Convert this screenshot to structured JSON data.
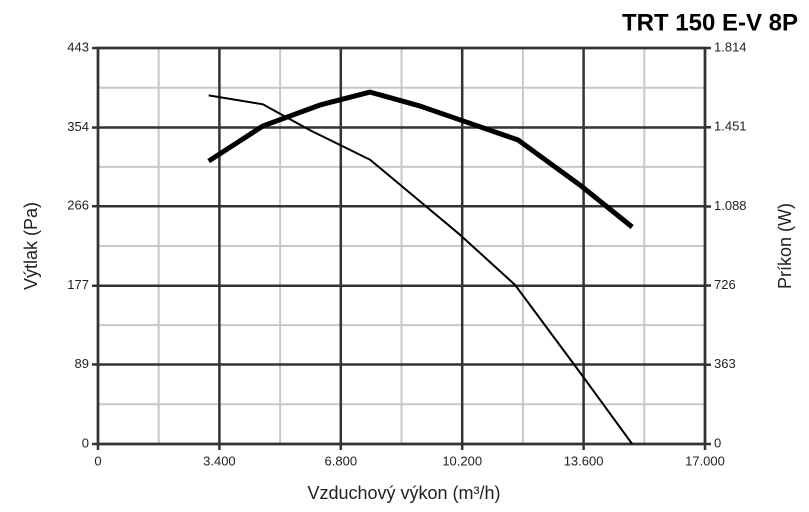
{
  "chart_data": {
    "type": "line",
    "title": "TRT 150 E-V 8P",
    "x_label": "Vzduchový výkon (m³/h)",
    "y_label": "Výtlak (Pa)",
    "y2_label": "Príkon (W)",
    "xlim": [
      0,
      17000
    ],
    "xticks": [
      0,
      {
        "value": 3400,
        "label": "3.400"
      },
      {
        "value": 6800,
        "label": "6.800"
      },
      {
        "value": 10200,
        "label": "10.200"
      },
      {
        "value": 13600,
        "label": "13.600"
      },
      {
        "value": 17000,
        "label": "17.000"
      }
    ],
    "ylim": [
      0,
      443
    ],
    "yticks": [
      0,
      89,
      177,
      266,
      354,
      443
    ],
    "y2lim": [
      0,
      1814
    ],
    "y2ticks": [
      0,
      363,
      726,
      {
        "value": 1088,
        "label": "1.088"
      },
      {
        "value": 1451,
        "label": "1.451"
      },
      {
        "value": 1814,
        "label": "1.814"
      }
    ],
    "grid": true,
    "series": [
      {
        "color": "#000000",
        "width": 2,
        "x": [
          3100,
          4620,
          5940,
          7620,
          8880,
          10140,
          11680,
          13500,
          14960
        ],
        "values": [
          390,
          380,
          351,
          318,
          276,
          234,
          178,
          80,
          0
        ]
      },
      {
        "color": "#000000",
        "width": 5,
        "axis": "y2",
        "x": [
          3100,
          4620,
          6220,
          7620,
          9020,
          10560,
          11760,
          13500,
          14960
        ],
        "values": [
          1296,
          1457,
          1553,
          1612,
          1548,
          1461,
          1393,
          1186,
          994
        ]
      }
    ]
  }
}
